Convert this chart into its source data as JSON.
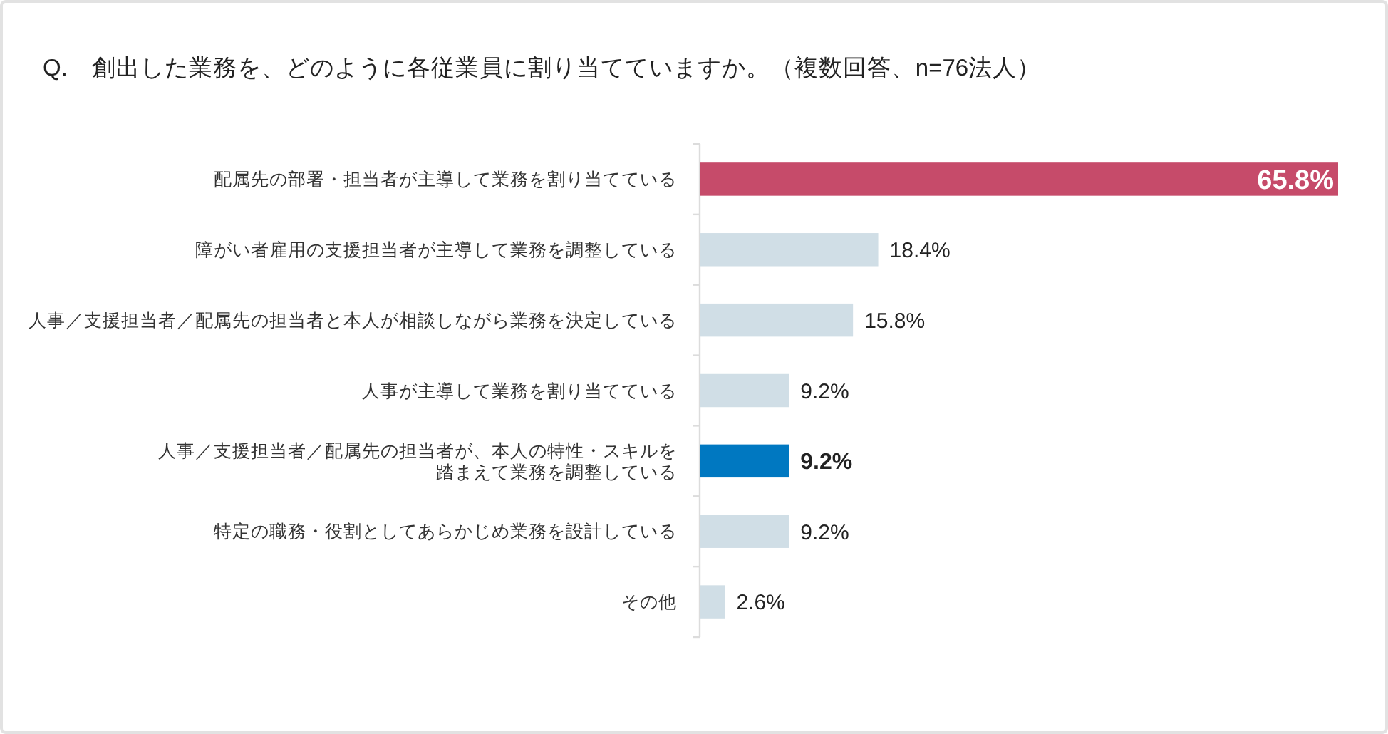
{
  "chart_data": {
    "type": "bar",
    "orientation": "horizontal",
    "title": "Q.　創出した業務を、どのように各従業員に割り当てていますか。（複数回答、n=76法人）",
    "categories": [
      "配属先の部署・担当者が主導して業務を割り当てている",
      "障がい者雇用の支援担当者が主導して業務を調整している",
      "人事／支援担当者／配属先の担当者と本人が相談しながら業務を決定している",
      "人事が主導して業務を割り当てている",
      "人事／支援担当者／配属先の担当者が、本人の特性・スキルを踏まえて業務を調整している",
      "特定の職務・役割としてあらかじめ業務を設計している",
      "その他"
    ],
    "values": [
      65.8,
      18.4,
      15.8,
      9.2,
      9.2,
      9.2,
      2.6
    ],
    "colors": [
      "#c64b6a",
      "#d0dee6",
      "#d0dee6",
      "#d0dee6",
      "#0078c1",
      "#d0dee6",
      "#d0dee6"
    ],
    "value_labels": [
      "65.8%",
      "18.4%",
      "15.8%",
      "9.2%",
      "9.2%",
      "9.2%",
      "2.6%"
    ]
  }
}
